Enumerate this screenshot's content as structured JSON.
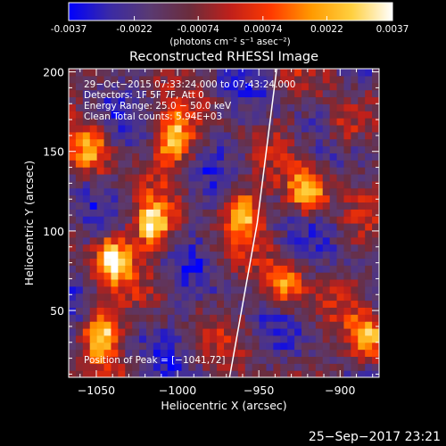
{
  "colorbar": {
    "tick_labels": [
      "-0.0037",
      "-0.0022",
      "-0.00074",
      "0.00074",
      "0.0022",
      "0.0037"
    ],
    "tick_values": [
      -0.0037,
      -0.0022,
      -0.00074,
      0.00074,
      0.0022,
      0.0037
    ],
    "unit_label": "(photons cm⁻² s⁻¹ asec⁻²)",
    "colors": [
      "#0000ff",
      "#3a2aa6",
      "#5a3a72",
      "#6b2c3c",
      "#c0201a",
      "#ff3a00",
      "#ff9a00",
      "#ffd040",
      "#ffffff"
    ]
  },
  "chart_data": {
    "type": "heatmap",
    "title": "Reconstructed RHESSI Image",
    "xlabel": "Heliocentric X (arcsec)",
    "ylabel": "Heliocentric Y (arcsec)",
    "xlim": [
      -1067,
      -876
    ],
    "ylim": [
      8,
      202
    ],
    "x_ticks": [
      -1050,
      -1000,
      -950,
      -900
    ],
    "x_tick_labels": [
      "−1050",
      "−1000",
      "−950",
      "−900"
    ],
    "y_ticks": [
      50,
      100,
      150,
      200
    ],
    "y_tick_labels": [
      "50",
      "100",
      "150",
      "200"
    ],
    "annotations": [
      "29−Oct−2015 07:33:24.000 to 07:43:24.000",
      "Detectors: 1F 5F 7F, Att 0",
      "Energy Range: 25.0 − 50.0 keV",
      "Clean    Total counts: 5.94E+03"
    ],
    "peak_label": "Position of Peak = [−1041,72]",
    "limb_line": [
      [
        -968,
        8
      ],
      [
        -951,
        105
      ],
      [
        -939,
        202
      ]
    ],
    "sources": [
      {
        "x": -1047,
        "y": 37,
        "intensity": 0.95
      },
      {
        "x": -1040,
        "y": 83,
        "intensity": 0.95
      },
      {
        "x": -1015,
        "y": 104,
        "intensity": 0.95
      },
      {
        "x": -1002,
        "y": 158,
        "intensity": 0.9
      },
      {
        "x": -960,
        "y": 112,
        "intensity": 0.8
      },
      {
        "x": -920,
        "y": 125,
        "intensity": 0.95
      },
      {
        "x": -934,
        "y": 65,
        "intensity": 0.7
      },
      {
        "x": -883,
        "y": 32,
        "intensity": 0.85
      },
      {
        "x": -1053,
        "y": 150,
        "intensity": 0.65
      },
      {
        "x": -898,
        "y": 165,
        "intensity": 0.55
      }
    ]
  },
  "footer": {
    "date_stamp": "25−Sep−2017 23:21"
  }
}
